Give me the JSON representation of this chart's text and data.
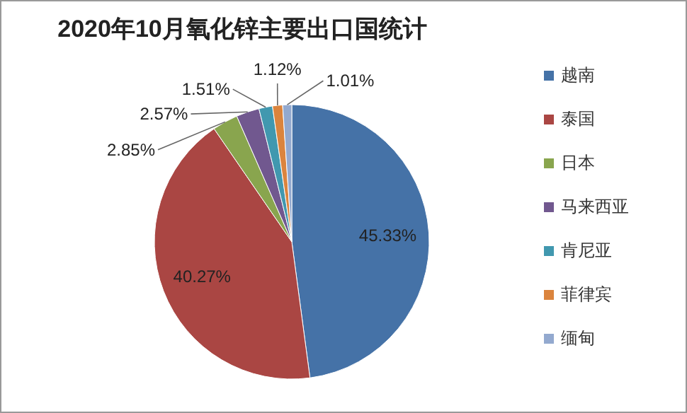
{
  "chart_data": {
    "type": "pie",
    "title": "2020年10月氧化锌主要出口国统计",
    "categories": [
      "越南",
      "泰国",
      "日本",
      "马来西亚",
      "肯尼亚",
      "菲律宾",
      "缅甸"
    ],
    "values": [
      45.33,
      40.27,
      2.85,
      2.57,
      1.51,
      1.12,
      1.01
    ],
    "value_labels": [
      "45.33%",
      "40.27%",
      "2.85%",
      "2.57%",
      "1.51%",
      "1.12%",
      "1.01%"
    ],
    "colors": [
      "#4572a7",
      "#aa4643",
      "#89a54e",
      "#71588f",
      "#4198af",
      "#db843d",
      "#93a9cf"
    ],
    "legend": "right"
  }
}
